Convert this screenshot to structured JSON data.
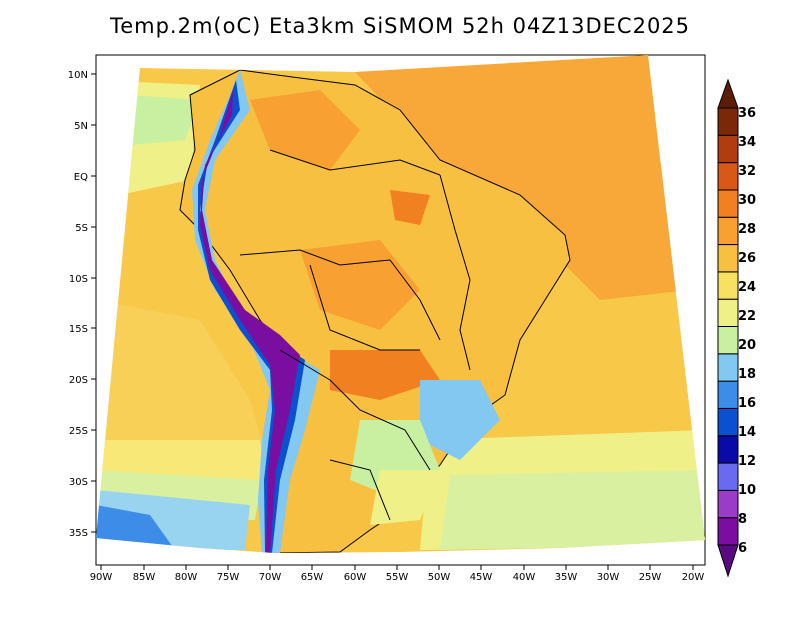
{
  "title": "Temp.2m(oC) Eta3km SiSMOM 52h 04Z13DEC2025",
  "axes": {
    "lat_labels": [
      "10N",
      "5N",
      "EQ",
      "5S",
      "10S",
      "15S",
      "20S",
      "25S",
      "30S",
      "35S"
    ],
    "lon_labels": [
      "90W",
      "85W",
      "80W",
      "75W",
      "70W",
      "65W",
      "60W",
      "55W",
      "50W",
      "45W",
      "40W",
      "35W",
      "30W",
      "25W",
      "20W"
    ]
  },
  "colorbar": {
    "labels": [
      "6",
      "8",
      "10",
      "12",
      "14",
      "16",
      "18",
      "20",
      "22",
      "24",
      "26",
      "28",
      "30",
      "32",
      "34",
      "36"
    ],
    "colors": [
      "#7a0ea0",
      "#9a3cc8",
      "#6a6af0",
      "#0a0aa8",
      "#0a50d0",
      "#3c8ce8",
      "#82c8f0",
      "#c8f0a0",
      "#f0f088",
      "#f8e060",
      "#f8c040",
      "#f8a032",
      "#f08020",
      "#d85818",
      "#b03c10",
      "#7a2808"
    ],
    "arrow_low_color": "#5a0a80",
    "arrow_high_color": "#5a1e06"
  }
}
